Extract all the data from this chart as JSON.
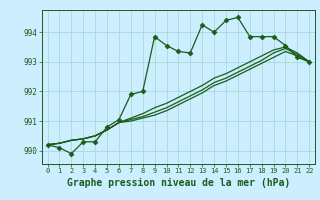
{
  "background_color": "#cceeff",
  "grid_color": "#aadddd",
  "line_color": "#1a5c1a",
  "marker_color": "#1a5c1a",
  "title": "Graphe pression niveau de la mer (hPa)",
  "title_fontsize": 7.0,
  "xlim": [
    -0.5,
    22.5
  ],
  "ylim": [
    989.55,
    994.75
  ],
  "yticks": [
    990,
    991,
    992,
    993,
    994
  ],
  "xticks": [
    0,
    1,
    2,
    3,
    4,
    5,
    6,
    7,
    8,
    9,
    10,
    11,
    12,
    13,
    14,
    15,
    16,
    17,
    18,
    19,
    20,
    21,
    22
  ],
  "series": [
    [
      990.2,
      990.1,
      989.9,
      990.3,
      990.3,
      990.8,
      991.05,
      991.9,
      992.0,
      993.85,
      993.55,
      993.35,
      993.3,
      994.25,
      994.0,
      994.4,
      994.5,
      993.85,
      993.85,
      993.85,
      993.55,
      993.15,
      993.0
    ],
    [
      990.2,
      990.25,
      990.35,
      990.4,
      990.5,
      990.7,
      990.95,
      991.1,
      991.25,
      991.45,
      991.6,
      991.8,
      992.0,
      992.2,
      992.45,
      992.6,
      992.8,
      993.0,
      993.2,
      993.4,
      993.5,
      993.3,
      993.0
    ],
    [
      990.2,
      990.25,
      990.35,
      990.4,
      990.5,
      990.7,
      990.95,
      991.05,
      991.15,
      991.3,
      991.45,
      991.65,
      991.85,
      992.05,
      992.3,
      992.45,
      992.65,
      992.85,
      993.05,
      993.3,
      993.45,
      993.25,
      993.0
    ],
    [
      990.2,
      990.25,
      990.35,
      990.4,
      990.5,
      990.7,
      990.95,
      991.0,
      991.1,
      991.2,
      991.35,
      991.55,
      991.75,
      991.95,
      992.2,
      992.35,
      992.55,
      992.75,
      992.95,
      993.15,
      993.35,
      993.2,
      993.0
    ]
  ],
  "marker_symbol": "D",
  "marker_size": 2.5,
  "tick_fontsize": 5.0,
  "ytick_fontsize": 5.5
}
